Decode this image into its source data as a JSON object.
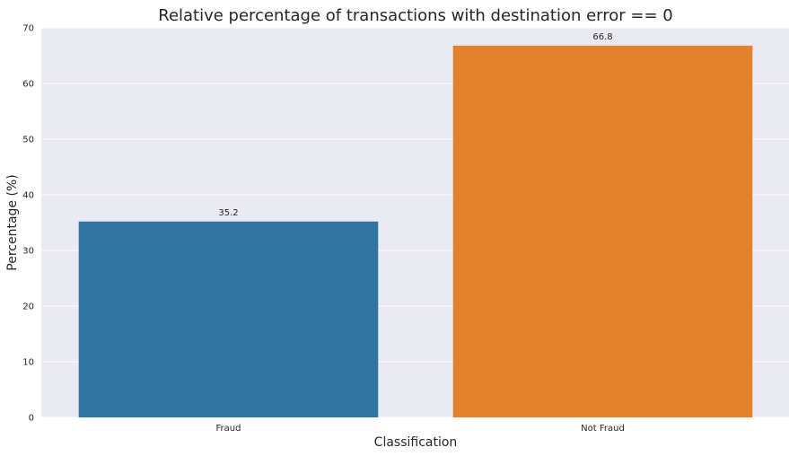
{
  "chart_data": {
    "type": "bar",
    "title": "Relative percentage of transactions with destination error == 0",
    "xlabel": "Classification",
    "ylabel": "Percentage (%)",
    "categories": [
      "Fraud",
      "Not Fraud"
    ],
    "values": [
      35.2,
      66.8
    ],
    "value_labels": [
      "35.2",
      "66.8"
    ],
    "ylim": [
      0,
      70
    ],
    "yticks": [
      0,
      10,
      20,
      30,
      40,
      50,
      60,
      70
    ],
    "grid": true,
    "colors": {
      "background": "#eaeaf2",
      "grid": "#ffffff",
      "bars": [
        "#3274a1",
        "#e1812c"
      ],
      "text": "#262626"
    }
  }
}
